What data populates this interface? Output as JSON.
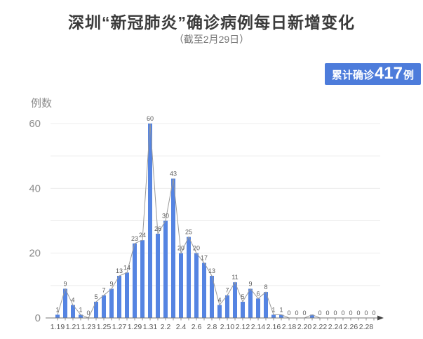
{
  "header": {
    "title": "深圳“新冠肺炎”确诊病例每日新增变化",
    "subtitle": "（截至2月29日）"
  },
  "badge": {
    "prefix": "累计确诊",
    "value": "417",
    "suffix": "例",
    "bg_color": "#4d7cdb",
    "text_color": "#ffffff"
  },
  "colors": {
    "bar": "#5584e2",
    "trend_line": "#999999",
    "gridline": "#ececec",
    "axis": "#777777",
    "arrow": "#444444",
    "data_label": "#5a5a5a",
    "x_label": "#555555",
    "y_label": "#8c8c8c",
    "title": "#3b3b3b",
    "subtitle": "#757575"
  },
  "chart_data": {
    "type": "bar",
    "title": "深圳“新冠肺炎”确诊病例每日新增变化",
    "subtitle": "（截至2月29日）",
    "y_axis_name": "例数",
    "categories": [
      "1.19",
      "1.20",
      "1.21",
      "1.22",
      "1.23",
      "1.24",
      "1.25",
      "1.26",
      "1.27",
      "1.28",
      "1.29",
      "1.30",
      "1.31",
      "2.1",
      "2.2",
      "2.3",
      "2.4",
      "2.5",
      "2.6",
      "2.7",
      "2.8",
      "2.9",
      "2.10",
      "2.11",
      "2.12",
      "2.13",
      "2.14",
      "2.15",
      "2.16",
      "2.17",
      "2.18",
      "2.19",
      "2.20",
      "2.21",
      "2.22",
      "2.23",
      "2.24",
      "2.25",
      "2.26",
      "2.27",
      "2.28",
      "2.29"
    ],
    "values": [
      1,
      9,
      4,
      1,
      0,
      5,
      7,
      9,
      13,
      14,
      23,
      24,
      60,
      26,
      30,
      43,
      20,
      25,
      20,
      17,
      13,
      4,
      7,
      11,
      5,
      9,
      6,
      8,
      1,
      1,
      0,
      0,
      0,
      1,
      0,
      0,
      0,
      0,
      0,
      0,
      0,
      0
    ],
    "data_labels": [
      "1",
      "9",
      "4",
      "1",
      "0",
      "5",
      "7",
      "9",
      "13",
      "14",
      "23",
      "24",
      "60",
      "26",
      "30",
      "43",
      "20",
      "25",
      "20",
      "17",
      "13",
      "4",
      "7",
      "11",
      "5",
      "9",
      "6",
      "8",
      "1",
      "1",
      "0",
      "0",
      "0",
      "",
      "0",
      "0",
      "0",
      "0",
      "0",
      "0",
      "0",
      "0"
    ],
    "x_tick_labels_shown": [
      "1.19",
      "1.21",
      "1.23",
      "1.25",
      "1.27",
      "1.29",
      "1.31",
      "2.2",
      "2.4",
      "2.6",
      "2.8",
      "2.10",
      "2.12",
      "2.14",
      "2.16",
      "2.18",
      "2.20",
      "2.22",
      "2.24",
      "2.26",
      "2.28"
    ],
    "x_tick_label_interval": 2,
    "y_ticks": [
      0,
      20,
      40,
      60
    ],
    "ylim": [
      0,
      60
    ],
    "gridline_step": 10,
    "grid": true,
    "legend": false,
    "line_overlay": true
  }
}
